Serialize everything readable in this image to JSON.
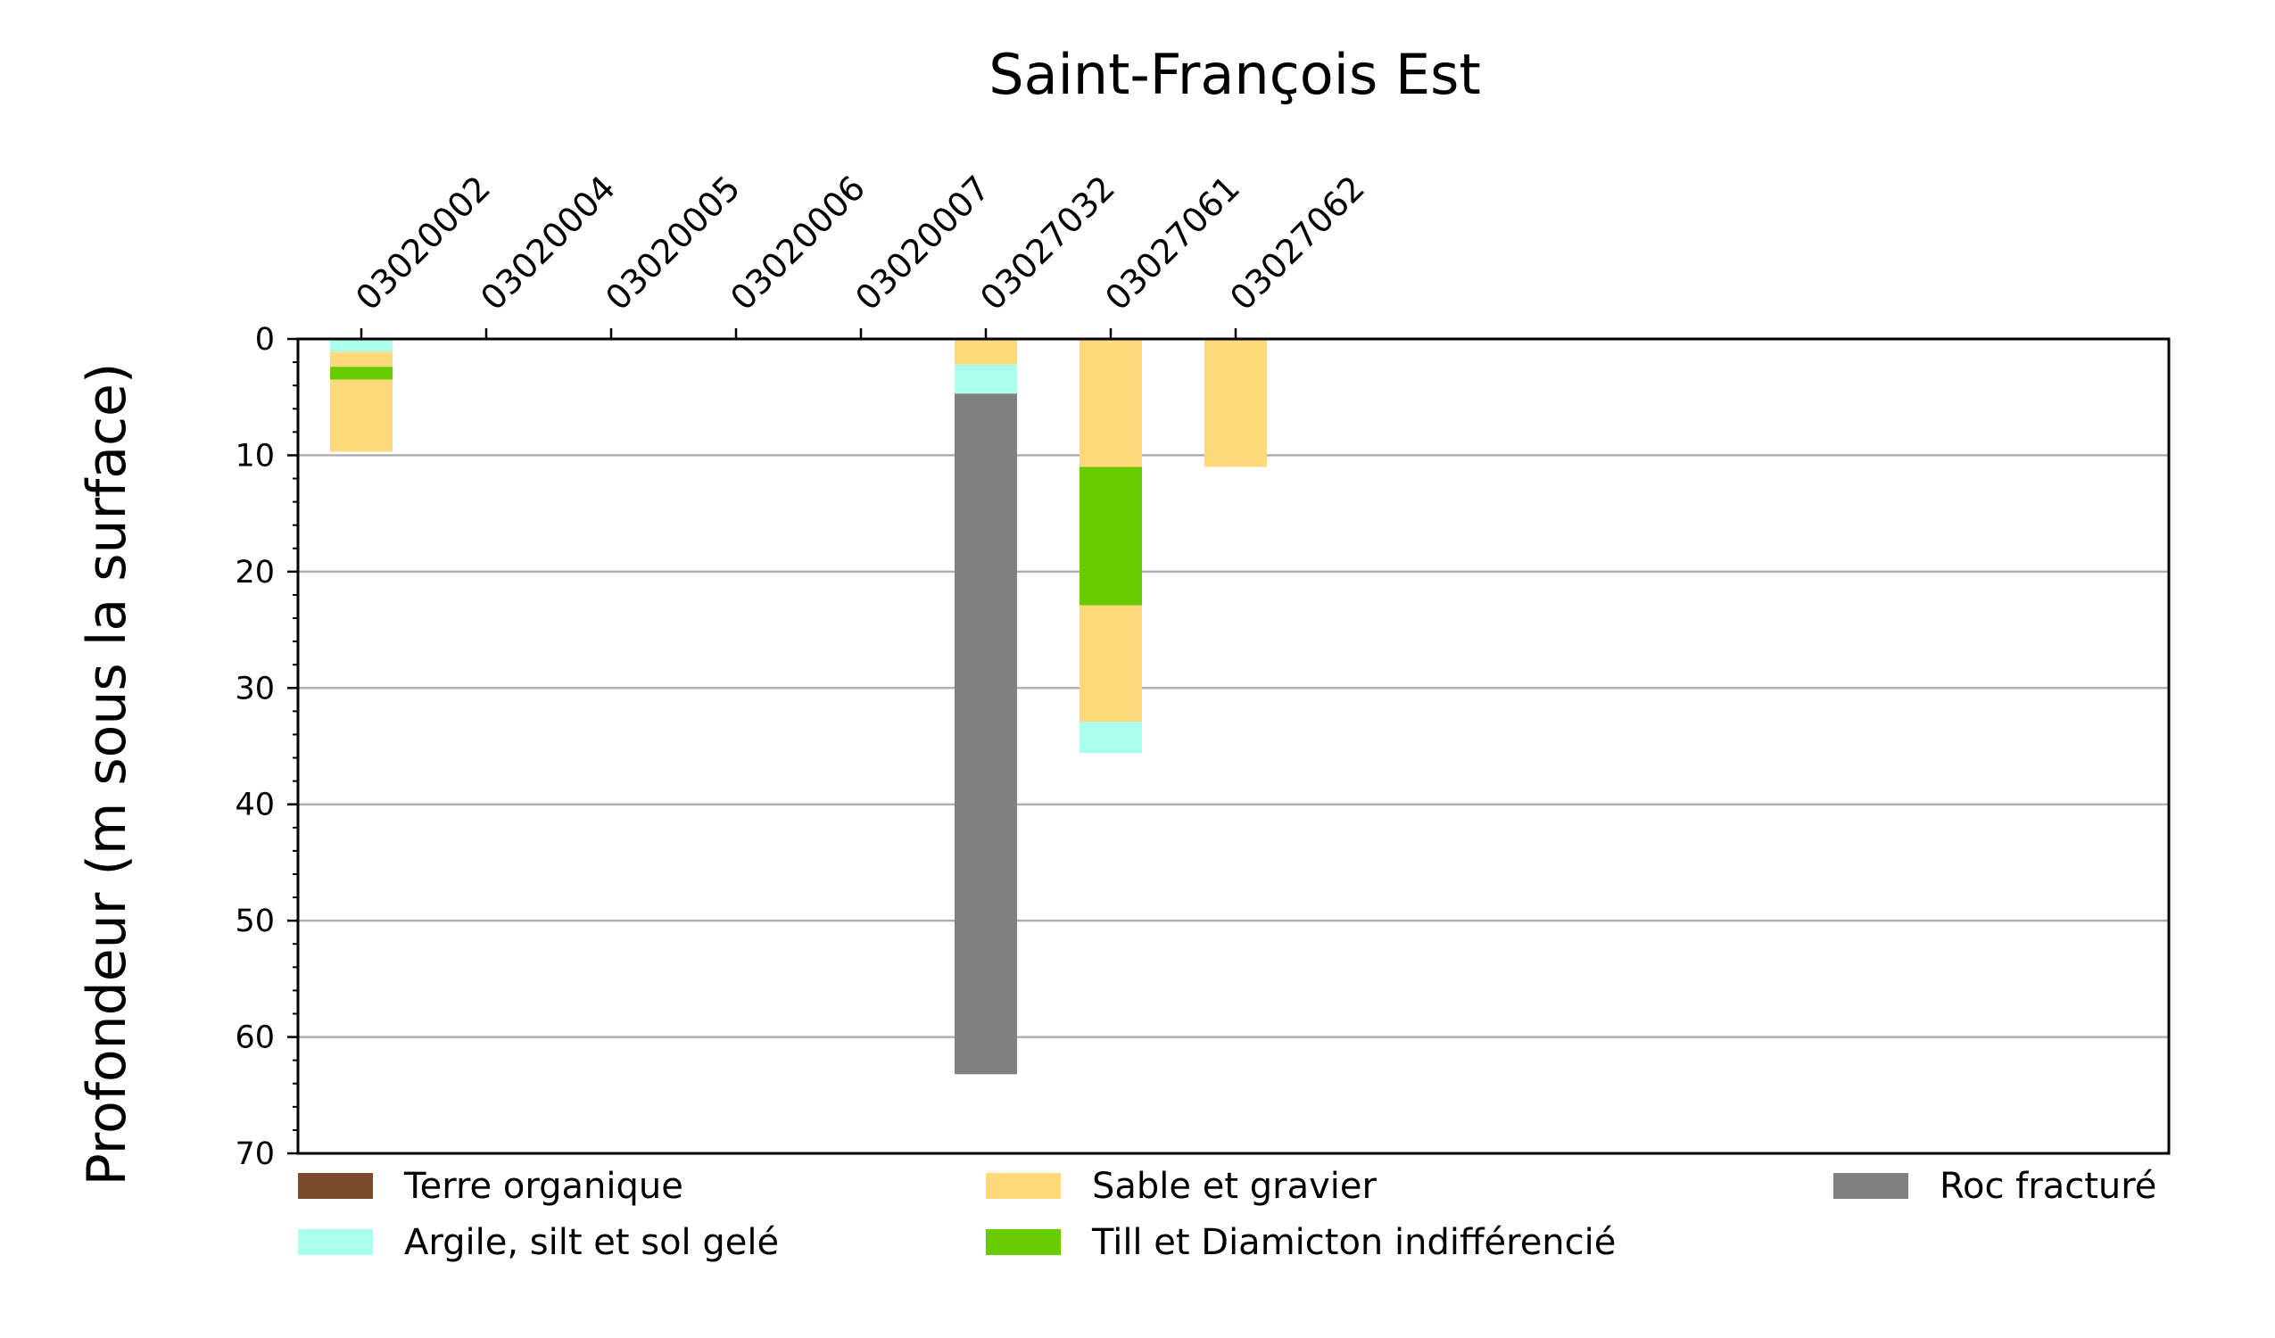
{
  "chart_data": {
    "type": "bar",
    "title": "Saint-François Est",
    "xlabel": "",
    "ylabel": "Profondeur (m sous la surface)",
    "ylim": [
      0,
      70
    ],
    "y_inverted": true,
    "yticks": [
      "0",
      "10",
      "20",
      "30",
      "40",
      "50",
      "60",
      "70"
    ],
    "grid": "horizontal",
    "categories": [
      "03020002",
      "03020004",
      "03020005",
      "03020006",
      "03020007",
      "03027032",
      "03027061",
      "03027062"
    ],
    "units": [
      {
        "name": "Terre organique",
        "color": "#7b4a2b"
      },
      {
        "name": "Argile, silt et sol gelé",
        "color": "#aaffee"
      },
      {
        "name": "Sable et gravier",
        "color": "#ffd97a"
      },
      {
        "name": "Till et Diamicton indifférencié",
        "color": "#66cc00"
      },
      {
        "name": "Roc fracturé",
        "color": "#808080"
      }
    ],
    "logs": [
      {
        "well": "03020002",
        "layers": [
          {
            "unit": "Argile, silt et sol gelé",
            "top": 0,
            "bottom": 1.1
          },
          {
            "unit": "Sable et gravier",
            "top": 1.1,
            "bottom": 2.4
          },
          {
            "unit": "Till et Diamicton indifférencié",
            "top": 2.4,
            "bottom": 3.5
          },
          {
            "unit": "Sable et gravier",
            "top": 3.5,
            "bottom": 9.7
          }
        ]
      },
      {
        "well": "03020004",
        "layers": []
      },
      {
        "well": "03020005",
        "layers": []
      },
      {
        "well": "03020006",
        "layers": []
      },
      {
        "well": "03020007",
        "layers": []
      },
      {
        "well": "03027032",
        "layers": [
          {
            "unit": "Sable et gravier",
            "top": 0,
            "bottom": 2.2
          },
          {
            "unit": "Argile, silt et sol gelé",
            "top": 2.2,
            "bottom": 4.7
          },
          {
            "unit": "Roc fracturé",
            "top": 4.7,
            "bottom": 63.2
          }
        ]
      },
      {
        "well": "03027061",
        "layers": [
          {
            "unit": "Sable et gravier",
            "top": 0,
            "bottom": 11
          },
          {
            "unit": "Till et Diamicton indifférencié",
            "top": 11,
            "bottom": 22.9
          },
          {
            "unit": "Sable et gravier",
            "top": 22.9,
            "bottom": 32.9
          },
          {
            "unit": "Argile, silt et sol gelé",
            "top": 32.9,
            "bottom": 35.6
          }
        ]
      },
      {
        "well": "03027062",
        "layers": [
          {
            "unit": "Sable et gravier",
            "top": 0,
            "bottom": 11
          }
        ]
      }
    ],
    "legend": {
      "placement": "below",
      "entries": [
        "Terre organique",
        "Sable et gravier",
        "Roc fracturé",
        "Argile, silt et sol gelé",
        "Till et Diamicton indifférencié"
      ]
    }
  }
}
